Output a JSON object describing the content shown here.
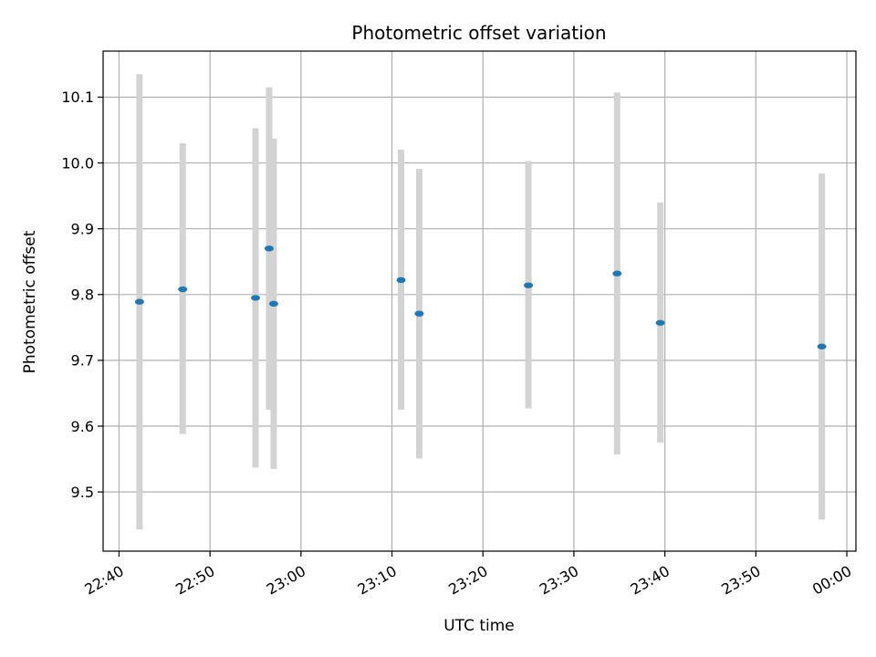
{
  "chart_data": {
    "type": "scatter",
    "title": "Photometric offset variation",
    "xlabel": "UTC time",
    "ylabel": "Photometric offset",
    "grid": true,
    "x_unit": "time (HH:MM, UTC)",
    "xlim": [
      "22:38:15",
      "00:01:00"
    ],
    "ylim": [
      9.41,
      10.17
    ],
    "x_ticks": [
      "22:40",
      "22:50",
      "23:00",
      "23:10",
      "23:20",
      "23:30",
      "23:40",
      "23:50",
      "00:00"
    ],
    "y_ticks": [
      "9.5",
      "9.6",
      "9.7",
      "9.8",
      "9.9",
      "10.0",
      "10.1"
    ],
    "points": [
      {
        "x": "22:42:15",
        "y": 9.789,
        "ylow": 9.443,
        "yhigh": 10.135
      },
      {
        "x": "22:47:00",
        "y": 9.808,
        "ylow": 9.588,
        "yhigh": 10.03
      },
      {
        "x": "22:55:00",
        "y": 9.795,
        "ylow": 9.537,
        "yhigh": 10.053
      },
      {
        "x": "22:56:30",
        "y": 9.87,
        "ylow": 9.625,
        "yhigh": 10.115
      },
      {
        "x": "22:57:00",
        "y": 9.786,
        "ylow": 9.535,
        "yhigh": 10.037
      },
      {
        "x": "23:11:00",
        "y": 9.822,
        "ylow": 9.625,
        "yhigh": 10.02
      },
      {
        "x": "23:13:00",
        "y": 9.771,
        "ylow": 9.551,
        "yhigh": 9.991
      },
      {
        "x": "23:25:00",
        "y": 9.814,
        "ylow": 9.627,
        "yhigh": 10.003
      },
      {
        "x": "23:34:45",
        "y": 9.832,
        "ylow": 9.557,
        "yhigh": 10.107
      },
      {
        "x": "23:39:30",
        "y": 9.757,
        "ylow": 9.575,
        "yhigh": 9.94
      },
      {
        "x": "23:57:15",
        "y": 9.721,
        "ylow": 9.458,
        "yhigh": 9.984
      }
    ],
    "colors": {
      "point": "#1f77b4",
      "errorbar": "#d3d3d3",
      "grid": "#b0b0b0",
      "axes": "#000000"
    }
  }
}
